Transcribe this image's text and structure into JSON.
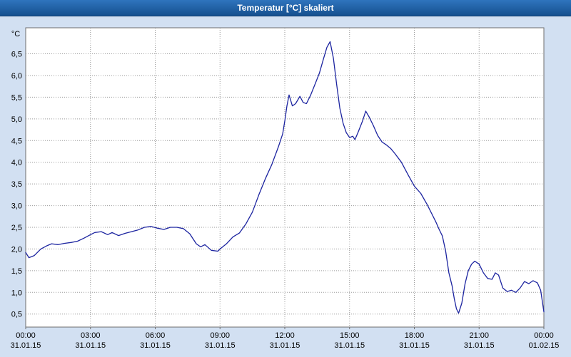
{
  "window": {
    "title": "Temperatur [°C] skaliert"
  },
  "colors": {
    "title_bar": "#1b5ca8",
    "title_text": "#ffffff",
    "background": "#d2e0f2",
    "plot_bg": "#ffffff",
    "plot_border": "#6e6e6e",
    "grid": "#9a9a9a",
    "line": "#1c24a0",
    "axis_text": "#000000"
  },
  "chart_data": {
    "type": "line",
    "title": "Temperatur [°C] skaliert",
    "unit_label": "°C",
    "xlabel": "",
    "ylabel": "°C",
    "grid": true,
    "legend": "none",
    "xlim": [
      0,
      24
    ],
    "ylim": [
      0.2,
      7.1
    ],
    "y_ticks": [
      {
        "value": 6.5,
        "label": "6,5"
      },
      {
        "value": 6.0,
        "label": "6,0"
      },
      {
        "value": 5.5,
        "label": "5,5"
      },
      {
        "value": 5.0,
        "label": "5,0"
      },
      {
        "value": 4.5,
        "label": "4,5"
      },
      {
        "value": 4.0,
        "label": "4,0"
      },
      {
        "value": 3.5,
        "label": "3,5"
      },
      {
        "value": 3.0,
        "label": "3,0"
      },
      {
        "value": 2.5,
        "label": "2,5"
      },
      {
        "value": 2.0,
        "label": "2,0"
      },
      {
        "value": 1.5,
        "label": "1,5"
      },
      {
        "value": 1.0,
        "label": "1,0"
      },
      {
        "value": 0.5,
        "label": "0,5"
      }
    ],
    "x_ticks": [
      {
        "hour": 0,
        "time": "00:00",
        "date": "31.01.15"
      },
      {
        "hour": 3,
        "time": "03:00",
        "date": "31.01.15"
      },
      {
        "hour": 6,
        "time": "06:00",
        "date": "31.01.15"
      },
      {
        "hour": 9,
        "time": "09:00",
        "date": "31.01.15"
      },
      {
        "hour": 12,
        "time": "12:00",
        "date": "31.01.15"
      },
      {
        "hour": 15,
        "time": "15:00",
        "date": "31.01.15"
      },
      {
        "hour": 18,
        "time": "18:00",
        "date": "31.01.15"
      },
      {
        "hour": 21,
        "time": "21:00",
        "date": "31.01.15"
      },
      {
        "hour": 24,
        "time": "00:00",
        "date": "01.02.15"
      }
    ],
    "series": [
      {
        "name": "Temperatur",
        "points": [
          [
            0.0,
            1.92
          ],
          [
            0.15,
            1.8
          ],
          [
            0.4,
            1.85
          ],
          [
            0.7,
            2.0
          ],
          [
            1.0,
            2.08
          ],
          [
            1.2,
            2.12
          ],
          [
            1.5,
            2.1
          ],
          [
            1.8,
            2.13
          ],
          [
            2.1,
            2.15
          ],
          [
            2.4,
            2.18
          ],
          [
            2.7,
            2.25
          ],
          [
            3.0,
            2.33
          ],
          [
            3.2,
            2.38
          ],
          [
            3.5,
            2.4
          ],
          [
            3.8,
            2.33
          ],
          [
            4.0,
            2.38
          ],
          [
            4.3,
            2.31
          ],
          [
            4.6,
            2.36
          ],
          [
            4.9,
            2.4
          ],
          [
            5.2,
            2.44
          ],
          [
            5.5,
            2.5
          ],
          [
            5.8,
            2.52
          ],
          [
            6.1,
            2.48
          ],
          [
            6.4,
            2.45
          ],
          [
            6.7,
            2.5
          ],
          [
            7.0,
            2.5
          ],
          [
            7.3,
            2.47
          ],
          [
            7.6,
            2.35
          ],
          [
            7.9,
            2.12
          ],
          [
            8.1,
            2.05
          ],
          [
            8.3,
            2.1
          ],
          [
            8.6,
            1.97
          ],
          [
            8.9,
            1.95
          ],
          [
            9.0,
            2.0
          ],
          [
            9.3,
            2.12
          ],
          [
            9.6,
            2.28
          ],
          [
            9.9,
            2.37
          ],
          [
            10.2,
            2.58
          ],
          [
            10.5,
            2.85
          ],
          [
            10.8,
            3.25
          ],
          [
            11.1,
            3.62
          ],
          [
            11.4,
            3.95
          ],
          [
            11.7,
            4.35
          ],
          [
            11.9,
            4.65
          ],
          [
            12.0,
            4.95
          ],
          [
            12.1,
            5.3
          ],
          [
            12.2,
            5.55
          ],
          [
            12.35,
            5.3
          ],
          [
            12.5,
            5.35
          ],
          [
            12.7,
            5.52
          ],
          [
            12.85,
            5.38
          ],
          [
            13.0,
            5.35
          ],
          [
            13.2,
            5.55
          ],
          [
            13.4,
            5.8
          ],
          [
            13.6,
            6.05
          ],
          [
            13.8,
            6.4
          ],
          [
            13.95,
            6.65
          ],
          [
            14.1,
            6.78
          ],
          [
            14.25,
            6.4
          ],
          [
            14.4,
            5.8
          ],
          [
            14.55,
            5.25
          ],
          [
            14.7,
            4.9
          ],
          [
            14.85,
            4.68
          ],
          [
            15.0,
            4.57
          ],
          [
            15.15,
            4.6
          ],
          [
            15.25,
            4.52
          ],
          [
            15.4,
            4.7
          ],
          [
            15.6,
            4.95
          ],
          [
            15.75,
            5.18
          ],
          [
            15.9,
            5.05
          ],
          [
            16.1,
            4.85
          ],
          [
            16.3,
            4.62
          ],
          [
            16.5,
            4.47
          ],
          [
            16.7,
            4.4
          ],
          [
            16.9,
            4.32
          ],
          [
            17.1,
            4.2
          ],
          [
            17.4,
            4.0
          ],
          [
            17.7,
            3.72
          ],
          [
            18.0,
            3.45
          ],
          [
            18.3,
            3.28
          ],
          [
            18.6,
            3.02
          ],
          [
            18.8,
            2.82
          ],
          [
            19.0,
            2.62
          ],
          [
            19.15,
            2.45
          ],
          [
            19.3,
            2.3
          ],
          [
            19.45,
            1.95
          ],
          [
            19.6,
            1.45
          ],
          [
            19.75,
            1.15
          ],
          [
            19.85,
            0.85
          ],
          [
            19.95,
            0.62
          ],
          [
            20.05,
            0.52
          ],
          [
            20.2,
            0.75
          ],
          [
            20.35,
            1.2
          ],
          [
            20.5,
            1.5
          ],
          [
            20.65,
            1.65
          ],
          [
            20.8,
            1.72
          ],
          [
            21.0,
            1.65
          ],
          [
            21.2,
            1.45
          ],
          [
            21.4,
            1.32
          ],
          [
            21.6,
            1.3
          ],
          [
            21.75,
            1.45
          ],
          [
            21.9,
            1.4
          ],
          [
            22.1,
            1.1
          ],
          [
            22.3,
            1.02
          ],
          [
            22.5,
            1.05
          ],
          [
            22.7,
            1.0
          ],
          [
            22.9,
            1.1
          ],
          [
            23.1,
            1.25
          ],
          [
            23.3,
            1.2
          ],
          [
            23.5,
            1.27
          ],
          [
            23.7,
            1.22
          ],
          [
            23.85,
            1.05
          ],
          [
            24.0,
            0.55
          ]
        ]
      }
    ]
  }
}
